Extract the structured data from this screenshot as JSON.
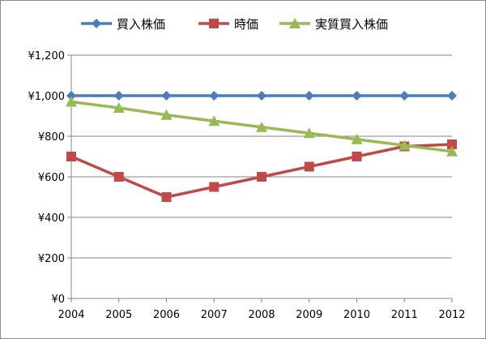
{
  "chart_data": {
    "type": "line",
    "title": "",
    "xlabel": "",
    "ylabel": "",
    "categories": [
      "2004",
      "2005",
      "2006",
      "2007",
      "2008",
      "2009",
      "2010",
      "2011",
      "2012"
    ],
    "ylim": [
      0,
      1200
    ],
    "yticks": [
      0,
      200,
      400,
      600,
      800,
      1000,
      1200
    ],
    "ytick_labels": [
      "¥0",
      "¥200",
      "¥400",
      "¥600",
      "¥800",
      "¥1,000",
      "¥1,200"
    ],
    "grid": true,
    "legend_position": "top",
    "series": [
      {
        "name": "買入株価",
        "color": "#4a7ebb",
        "marker": "diamond",
        "values": [
          1000,
          1000,
          1000,
          1000,
          1000,
          1000,
          1000,
          1000,
          1000
        ]
      },
      {
        "name": "時価",
        "color": "#be4b48",
        "marker": "square",
        "values": [
          700,
          600,
          500,
          550,
          600,
          650,
          700,
          750,
          760
        ]
      },
      {
        "name": "実質買入株価",
        "color": "#98b954",
        "marker": "triangle",
        "values": [
          970,
          940,
          905,
          875,
          845,
          815,
          785,
          755,
          725
        ]
      }
    ]
  }
}
